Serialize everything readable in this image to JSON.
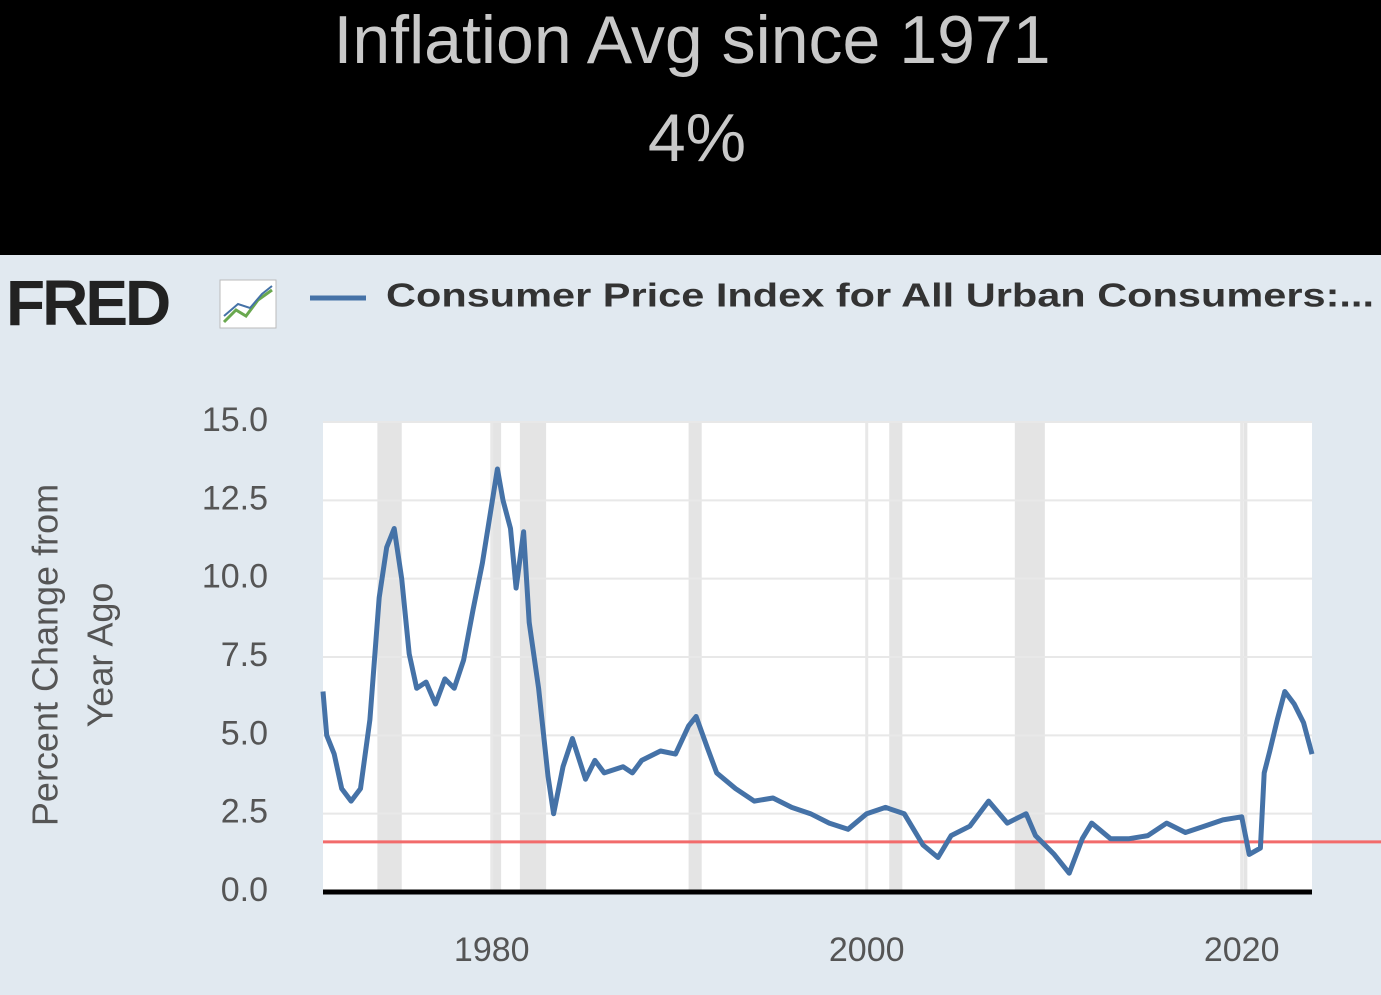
{
  "title": [
    "Inflation Avg since 1971",
    "4%"
  ],
  "chart_data": {
    "type": "line",
    "logo": "FRED",
    "ylabel": [
      "Percent Change from",
      "Year Ago"
    ],
    "xlim": [
      1971,
      2023.75
    ],
    "xticks": [
      1980,
      2000,
      2020
    ],
    "ylim": [
      0,
      15
    ],
    "yticks": [
      {
        "value": 0,
        "label": "0.0"
      },
      {
        "value": 2.5,
        "label": "2.5"
      },
      {
        "value": 5,
        "label": "5.0"
      },
      {
        "value": 7.5,
        "label": "7.5"
      },
      {
        "value": 10,
        "label": "10.0"
      },
      {
        "value": 12.5,
        "label": "12.5"
      },
      {
        "value": 15,
        "label": "15.0"
      }
    ],
    "grid": true,
    "recessions": [
      [
        1973.9,
        1975.2
      ],
      [
        1980.0,
        1980.5
      ],
      [
        1981.5,
        1982.9
      ],
      [
        1990.5,
        1991.2
      ],
      [
        2001.2,
        2001.9
      ],
      [
        2007.9,
        2009.5
      ],
      [
        2020.1,
        2020.3
      ]
    ],
    "reference_line": {
      "value": 1.6,
      "color": "#f26b6b"
    },
    "x": [
      1971.0,
      1971.2,
      1971.6,
      1972.0,
      1972.5,
      1973.0,
      1973.5,
      1974.0,
      1974.4,
      1974.8,
      1975.2,
      1975.6,
      1976.0,
      1976.5,
      1977.0,
      1977.5,
      1978.0,
      1978.5,
      1979.0,
      1979.5,
      1980.3,
      1980.6,
      1981.0,
      1981.3,
      1981.7,
      1982.0,
      1982.5,
      1983.0,
      1983.3,
      1983.8,
      1984.3,
      1985.0,
      1985.5,
      1986.0,
      1987.0,
      1987.5,
      1988.0,
      1989.0,
      1989.8,
      1990.5,
      1990.9,
      1991.5,
      1992.0,
      1993.0,
      1994.0,
      1995.0,
      1996.0,
      1997.0,
      1998.0,
      1999.0,
      2000.0,
      2001.0,
      2002.0,
      2003.0,
      2003.8,
      2004.5,
      2005.5,
      2006.5,
      2007.5,
      2008.5,
      2009.0,
      2010.0,
      2010.8,
      2011.5,
      2012.0,
      2013.0,
      2014.0,
      2015.0,
      2016.0,
      2017.0,
      2018.0,
      2019.0,
      2020.0,
      2020.4,
      2021.0,
      2021.2,
      2021.5,
      2021.9,
      2022.3,
      2022.8,
      2023.3,
      2023.75
    ],
    "series": [
      {
        "name": "Consumer Price Index for All Urban Consumers:...",
        "color": "#4572a7",
        "values": [
          6.4,
          5.0,
          4.4,
          3.3,
          2.9,
          3.3,
          5.5,
          9.4,
          11.0,
          11.6,
          10.0,
          7.6,
          6.5,
          6.7,
          6.0,
          6.8,
          6.5,
          7.4,
          9.0,
          10.5,
          13.5,
          12.5,
          11.6,
          9.7,
          11.5,
          8.6,
          6.5,
          3.7,
          2.5,
          4.0,
          4.9,
          3.6,
          4.2,
          3.8,
          4.0,
          3.8,
          4.2,
          4.5,
          4.4,
          5.3,
          5.6,
          4.6,
          3.8,
          3.3,
          2.9,
          3.0,
          2.7,
          2.5,
          2.2,
          2.0,
          2.5,
          2.7,
          2.5,
          1.5,
          1.1,
          1.8,
          2.1,
          2.9,
          2.2,
          2.5,
          1.8,
          1.2,
          0.6,
          1.7,
          2.2,
          1.7,
          1.7,
          1.8,
          2.2,
          1.9,
          2.1,
          2.3,
          2.4,
          1.2,
          1.4,
          3.8,
          4.5,
          5.5,
          6.4,
          6.0,
          5.4,
          4.4
        ]
      }
    ]
  }
}
